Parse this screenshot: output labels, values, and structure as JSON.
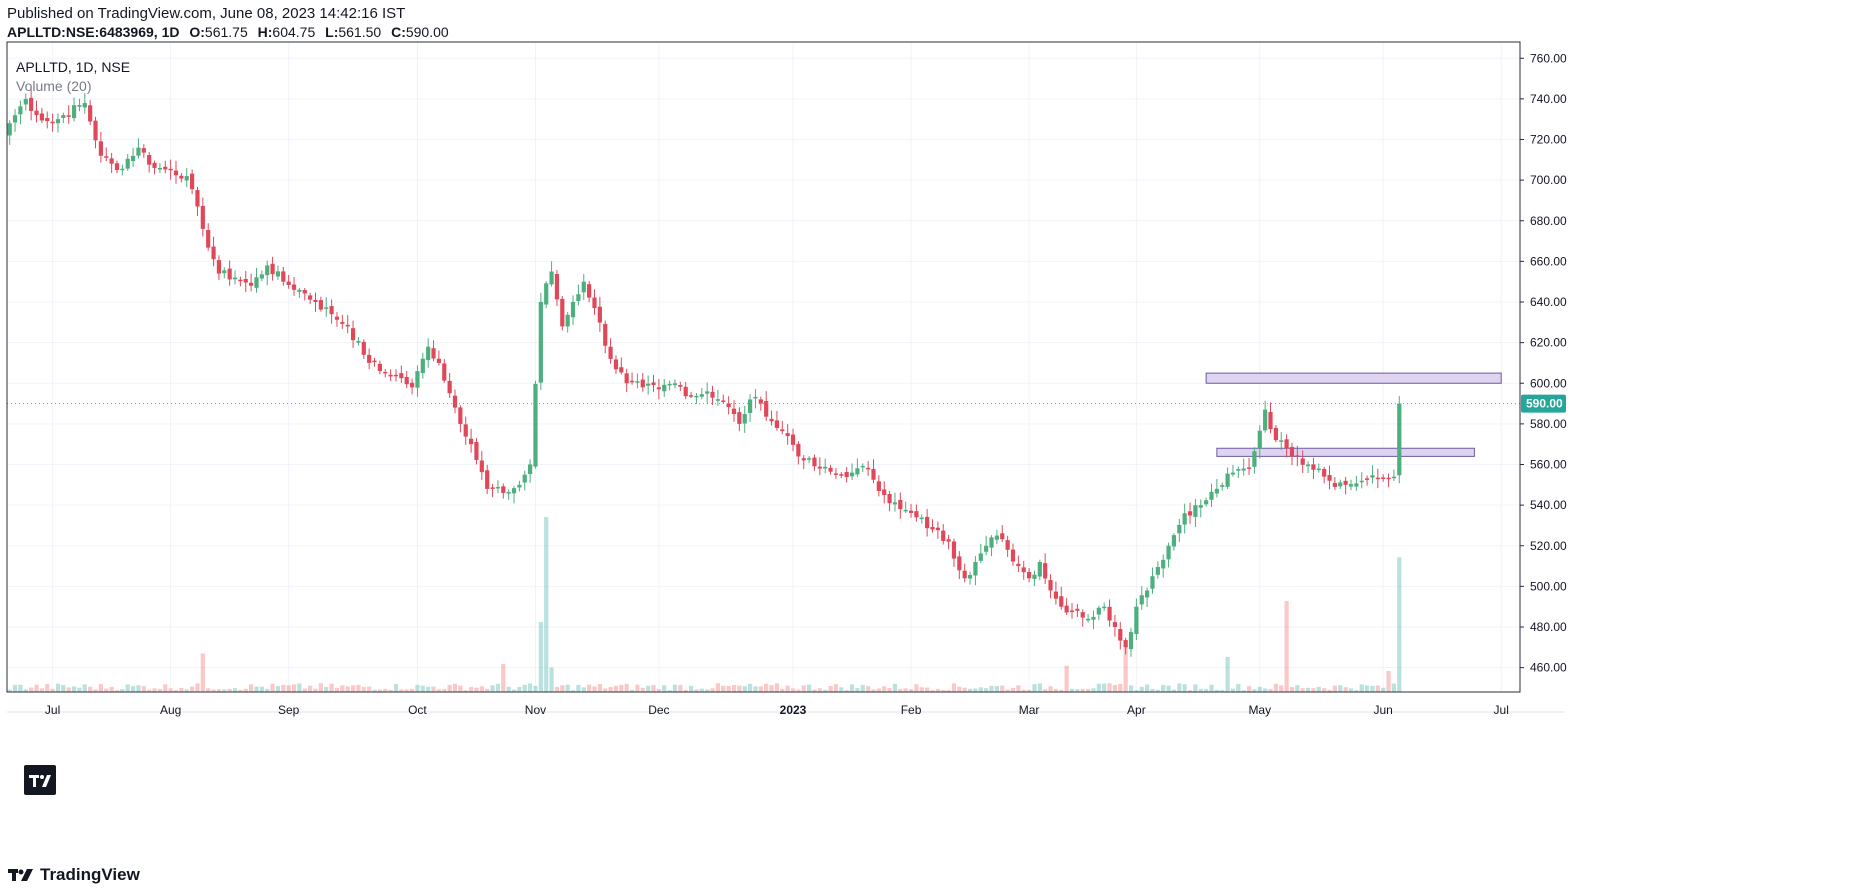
{
  "header": {
    "published": "Published on TradingView.com, June 08, 2023 14:42:16 IST",
    "symbol": "APLLTD:NSE:6483969, 1D",
    "open_label": "O:",
    "open": "561.75",
    "high_label": "H:",
    "high": "604.75",
    "low_label": "L:",
    "low": "561.50",
    "close_label": "C:",
    "close": "590.00"
  },
  "legend": {
    "title": "APLLTD, 1D, NSE",
    "volume": "Volume (20)"
  },
  "footer": {
    "brand": "TradingView"
  },
  "colors": {
    "up": "#26a69a",
    "down": "#ef5350",
    "up_candle": "#4caf7d",
    "down_candle": "#e0485a",
    "price_line": "#4cae8b",
    "zone_fill": "#d8cdf0",
    "zone_stroke": "#6a5a9c"
  },
  "chart_data": {
    "type": "candlestick",
    "symbol": "APLLTD",
    "ylim": [
      448,
      768
    ],
    "y_ticks": [
      460,
      480,
      500,
      520,
      540,
      560,
      580,
      600,
      620,
      640,
      660,
      680,
      700,
      720,
      740,
      760
    ],
    "y_tick_labels": [
      "460.00",
      "480.00",
      "500.00",
      "520.00",
      "540.00",
      "560.00",
      "580.00",
      "600.00",
      "620.00",
      "640.00",
      "660.00",
      "680.00",
      "700.00",
      "720.00",
      "740.00",
      "760.00"
    ],
    "x_tick_labels": [
      "Jul",
      "Aug",
      "Sep",
      "Oct",
      "Nov",
      "Dec",
      "2023",
      "Feb",
      "Mar",
      "Apr",
      "May",
      "Jun",
      "Jul"
    ],
    "x_tick_index": [
      8,
      30,
      52,
      76,
      98,
      121,
      146,
      168,
      190,
      210,
      233,
      256,
      278
    ],
    "last_price": 590.0,
    "last_price_label": "590.00",
    "zones": [
      {
        "from_index": 223,
        "to_index": 278,
        "low": 600,
        "high": 605
      },
      {
        "from_index": 225,
        "to_index": 273,
        "low": 564,
        "high": 568
      }
    ],
    "anchors": [
      [
        0,
        728
      ],
      [
        3,
        740
      ],
      [
        5,
        732
      ],
      [
        8,
        728
      ],
      [
        10,
        732
      ],
      [
        14,
        738
      ],
      [
        17,
        712
      ],
      [
        20,
        705
      ],
      [
        24,
        716
      ],
      [
        27,
        706
      ],
      [
        30,
        705
      ],
      [
        33,
        702
      ],
      [
        36,
        676
      ],
      [
        39,
        654
      ],
      [
        42,
        652
      ],
      [
        45,
        648
      ],
      [
        48,
        658
      ],
      [
        51,
        650
      ],
      [
        54,
        646
      ],
      [
        57,
        640
      ],
      [
        60,
        634
      ],
      [
        63,
        628
      ],
      [
        66,
        614
      ],
      [
        69,
        606
      ],
      [
        72,
        604
      ],
      [
        75,
        598
      ],
      [
        78,
        618
      ],
      [
        80,
        610
      ],
      [
        83,
        588
      ],
      [
        86,
        570
      ],
      [
        89,
        548
      ],
      [
        92,
        546
      ],
      [
        95,
        550
      ],
      [
        97,
        560
      ],
      [
        99,
        640
      ],
      [
        101,
        655
      ],
      [
        103,
        628
      ],
      [
        105,
        640
      ],
      [
        107,
        650
      ],
      [
        109,
        637
      ],
      [
        112,
        612
      ],
      [
        115,
        600
      ],
      [
        118,
        598
      ],
      [
        121,
        597
      ],
      [
        124,
        600
      ],
      [
        127,
        594
      ],
      [
        130,
        596
      ],
      [
        133,
        591
      ],
      [
        136,
        580
      ],
      [
        138,
        592
      ],
      [
        140,
        590
      ],
      [
        143,
        578
      ],
      [
        145,
        574
      ],
      [
        148,
        562
      ],
      [
        151,
        558
      ],
      [
        154,
        555
      ],
      [
        157,
        556
      ],
      [
        160,
        558
      ],
      [
        163,
        545
      ],
      [
        166,
        538
      ],
      [
        169,
        534
      ],
      [
        172,
        528
      ],
      [
        175,
        522
      ],
      [
        178,
        504
      ],
      [
        180,
        512
      ],
      [
        182,
        520
      ],
      [
        184,
        525
      ],
      [
        186,
        518
      ],
      [
        188,
        510
      ],
      [
        190,
        504
      ],
      [
        192,
        512
      ],
      [
        194,
        498
      ],
      [
        196,
        490
      ],
      [
        199,
        488
      ],
      [
        201,
        484
      ],
      [
        204,
        490
      ],
      [
        206,
        480
      ],
      [
        208,
        470
      ],
      [
        210,
        490
      ],
      [
        213,
        505
      ],
      [
        216,
        520
      ],
      [
        219,
        536
      ],
      [
        222,
        540
      ],
      [
        225,
        548
      ],
      [
        228,
        556
      ],
      [
        231,
        558
      ],
      [
        234,
        587
      ],
      [
        236,
        572
      ],
      [
        238,
        568
      ],
      [
        240,
        564
      ],
      [
        242,
        560
      ],
      [
        244,
        558
      ],
      [
        246,
        552
      ],
      [
        249,
        550
      ],
      [
        252,
        552
      ],
      [
        255,
        553
      ],
      [
        258,
        554
      ],
      [
        259,
        590
      ]
    ],
    "volume": {
      "max": 100,
      "spikes": [
        [
          99,
          40
        ],
        [
          100,
          100
        ],
        [
          208,
          27
        ],
        [
          238,
          52
        ],
        [
          259,
          77
        ],
        [
          36,
          22
        ],
        [
          92,
          16
        ],
        [
          101,
          14
        ],
        [
          197,
          15
        ],
        [
          227,
          20
        ],
        [
          257,
          12
        ]
      ]
    }
  }
}
